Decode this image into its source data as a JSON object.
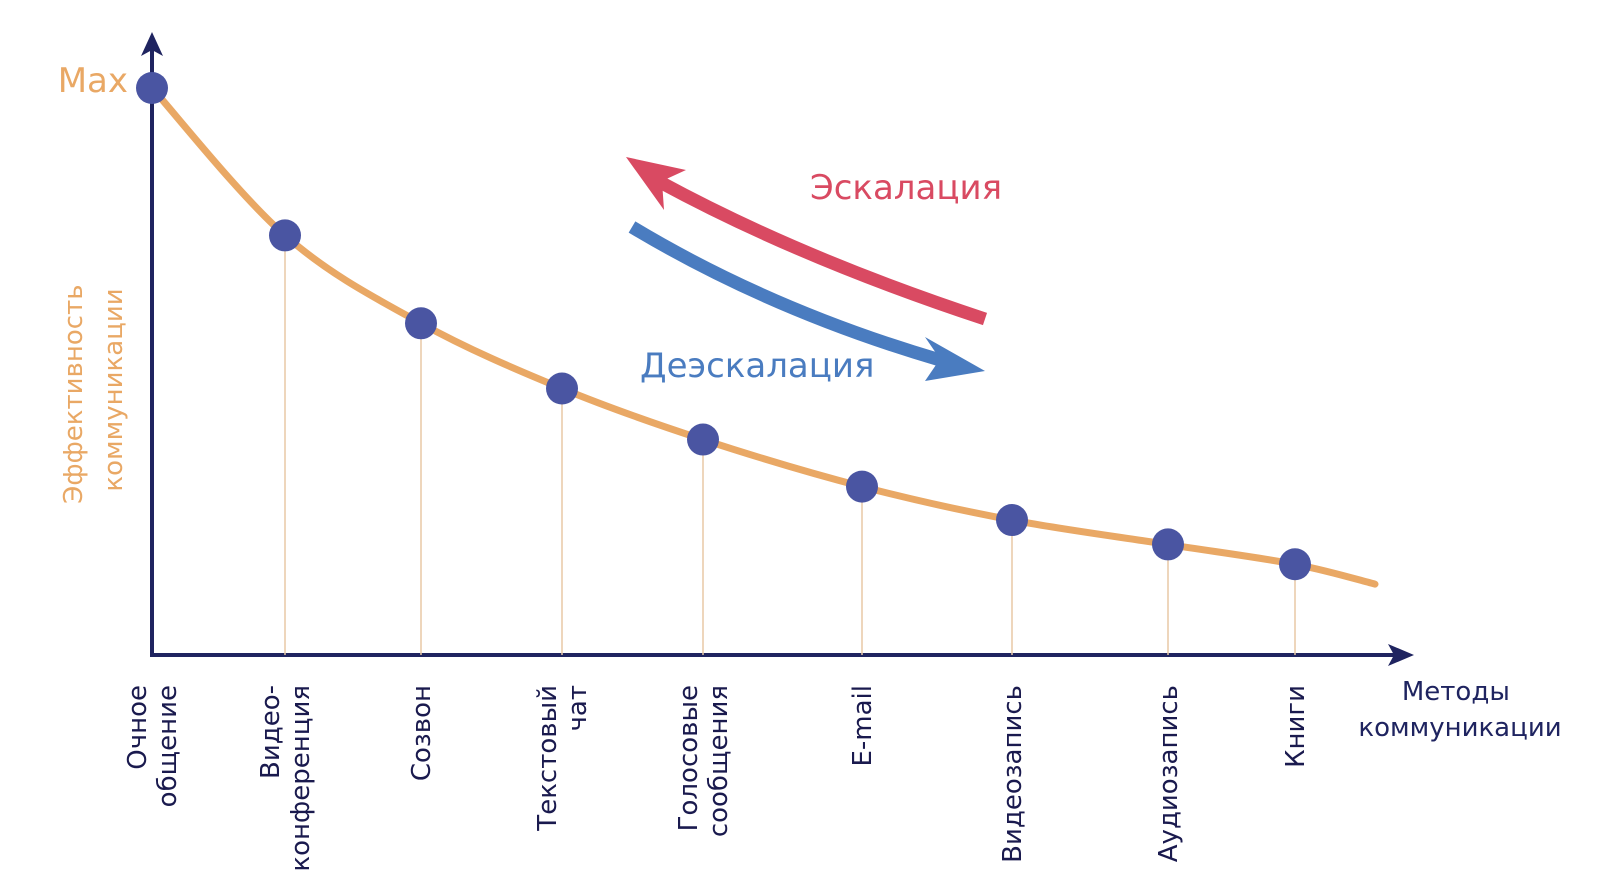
{
  "chart_data": {
    "type": "line",
    "y_top_label": "Max",
    "ylabel": [
      "Эффективность",
      "коммуникации"
    ],
    "xlabel": [
      "Методы",
      "коммуникации"
    ],
    "categories": [
      [
        "Очное",
        "общение"
      ],
      [
        "Видео-",
        "конференция"
      ],
      [
        "Созвон"
      ],
      [
        "Текстовый",
        "чат"
      ],
      [
        "Голосовые",
        "сообщения"
      ],
      [
        "E-mail"
      ],
      [
        "Видеозапись"
      ],
      [
        "Аудиозапись"
      ],
      [
        "Книги"
      ]
    ],
    "values": [
      1.0,
      0.74,
      0.585,
      0.47,
      0.38,
      0.297,
      0.238,
      0.195,
      0.16
    ],
    "ylim": [
      0,
      1
    ],
    "grid": false,
    "legend": "none"
  },
  "annotations": {
    "escalation": "Эскалация",
    "deescalation": "Деэскалация"
  },
  "colors": {
    "axis": "#1f2460",
    "curve": "#e9a865",
    "point": "#4a55a2",
    "escalation": "#d94a62",
    "deescalation": "#4a7cc0",
    "axis_text": "#e9a865",
    "category_text": "#1f2460"
  }
}
